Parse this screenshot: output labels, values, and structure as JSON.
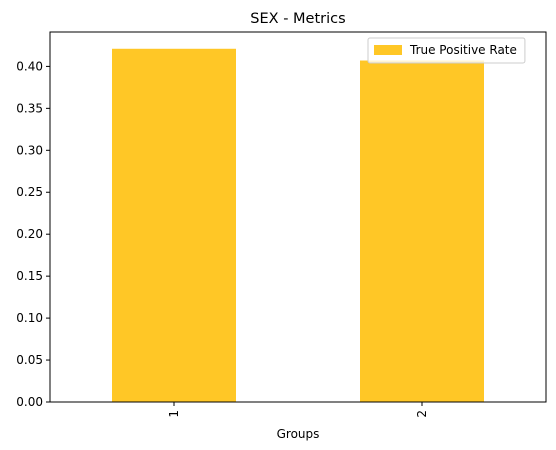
{
  "chart_data": {
    "type": "bar",
    "title": "SEX - Metrics",
    "xlabel": "Groups",
    "ylabel": "",
    "categories": [
      "1",
      "2"
    ],
    "series": [
      {
        "name": "True Positive Rate",
        "values": [
          0.421,
          0.407
        ],
        "color": "#ffc726"
      }
    ],
    "ylim": [
      0,
      0.441
    ],
    "yticks": [
      0.0,
      0.05,
      0.1,
      0.15,
      0.2,
      0.25,
      0.3,
      0.35,
      0.4
    ],
    "ytick_labels": [
      "0.00",
      "0.05",
      "0.10",
      "0.15",
      "0.20",
      "0.25",
      "0.30",
      "0.35",
      "0.40"
    ],
    "grid": false,
    "legend_position": "top-right"
  }
}
